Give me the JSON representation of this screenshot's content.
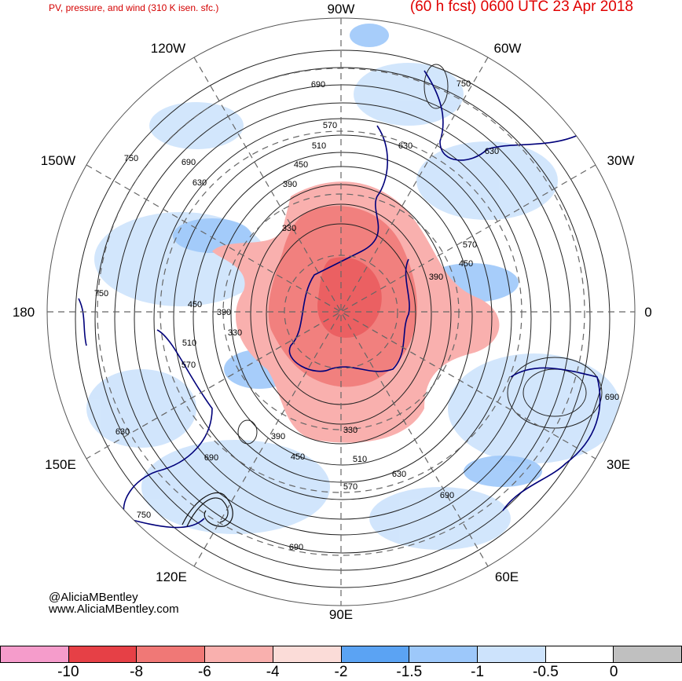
{
  "title": {
    "left": "PV, pressure, and wind (310 K isen. sfc.)",
    "right": "(60 h fcst) 0600 UTC 23 Apr 2018"
  },
  "longitude_labels": {
    "top": "90W",
    "upper_left_1": "120W",
    "upper_right_1": "60W",
    "upper_left_2": "150W",
    "upper_right_2": "30W",
    "left": "180",
    "right": "0",
    "lower_left_2": "150E",
    "lower_right_2": "30E",
    "lower_left_1": "120E",
    "lower_right_1": "60E",
    "bottom": "90E"
  },
  "contour_labels": [
    "690",
    "750",
    "570",
    "510",
    "630",
    "450",
    "390",
    "330",
    "690",
    "630",
    "750",
    "630",
    "570",
    "450",
    "390",
    "750",
    "450",
    "390",
    "330",
    "510",
    "570",
    "690",
    "630",
    "390",
    "450",
    "330",
    "510",
    "630",
    "570",
    "690",
    "690",
    "750",
    "690"
  ],
  "credits": {
    "line1": "@AliciaMBentley",
    "line2": "www.AliciaMBentley.com"
  },
  "colorbar": {
    "colors": [
      "#f59ccb",
      "#e64046",
      "#f07876",
      "#f9b0ae",
      "#fbdcd8",
      "#5ba3f3",
      "#9dc8fa",
      "#cde3fc",
      "#ffffff",
      "#c0c0c0"
    ],
    "tick_labels": [
      "-10",
      "-8",
      "-6",
      "-4",
      "-2",
      "-1.5",
      "-1",
      "-0.5",
      "0"
    ]
  },
  "map_colors": {
    "pv_negative_strong": "#f07876",
    "pv_negative_weak": "#f9b0ae",
    "pv_positive_weak": "#cde3fc",
    "pv_positive": "#9dc8fa",
    "coastline": "#00007a",
    "contour": "#222222"
  }
}
